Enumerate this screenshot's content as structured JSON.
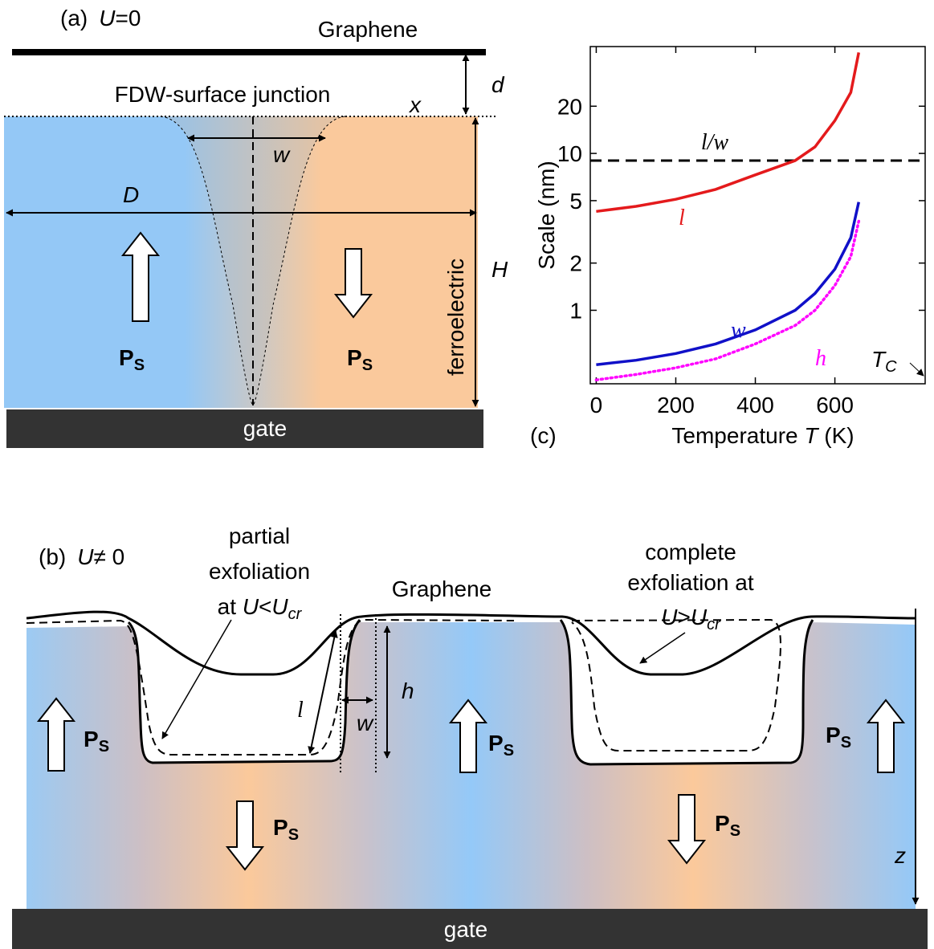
{
  "panel_a": {
    "label": "(a)",
    "condition": {
      "var": "U",
      "rest": "=0"
    },
    "graphene": "Graphene",
    "junction": "FDW-surface junction",
    "x_label": "x",
    "d_label": "d",
    "w_label": "w",
    "D_label": "D",
    "H_label": "H",
    "material": "ferroelectric",
    "polarization": [
      {
        "main": "P",
        "sub": "S"
      },
      {
        "main": "P",
        "sub": "S"
      }
    ],
    "gate": "gate"
  },
  "panel_b": {
    "label": "(b)",
    "condition": {
      "var": "U",
      "rest": "≠ 0"
    },
    "partial": {
      "lines": [
        "partial",
        "exfoliation"
      ],
      "at": "at ",
      "var": "U",
      "op": "<",
      "crit": "U",
      "crit_sub": "cr"
    },
    "graphene": "Graphene",
    "complete": {
      "lines": [
        "complete",
        "exfoliation at"
      ],
      "var": "U",
      "op": ">",
      "crit": "U",
      "crit_sub": "cr"
    },
    "l_label": "l",
    "w_label": "w",
    "h_label": "h",
    "z_label": "z",
    "polarization": [
      {
        "main": "P",
        "sub": "S"
      },
      {
        "main": "P",
        "sub": "S"
      },
      {
        "main": "P",
        "sub": "S"
      },
      {
        "main": "P",
        "sub": "S"
      },
      {
        "main": "P",
        "sub": "S"
      }
    ],
    "gate": "gate"
  },
  "chart_data": {
    "type": "line",
    "panel_label": "(c)",
    "y_label": "Scale (nm)",
    "x_label": {
      "pre": "Temperature ",
      "var": "T",
      "post": " (K)"
    },
    "log_y": true,
    "x": [
      0,
      100,
      200,
      300,
      400,
      500,
      550,
      600,
      640,
      660
    ],
    "series": [
      {
        "name": "l",
        "color": "#e41a1c",
        "style": "solid",
        "values": [
          4.27,
          4.6,
          5.1,
          5.9,
          7.3,
          9.0,
          11.0,
          16.2,
          24.5,
          44
        ]
      },
      {
        "name": "w",
        "color": "#1010c8",
        "style": "solid",
        "values": [
          0.45,
          0.48,
          0.53,
          0.61,
          0.75,
          1.0,
          1.28,
          1.83,
          2.9,
          4.9
        ]
      },
      {
        "name": "h",
        "color": "#ff00ff",
        "style": "dotted",
        "values": [
          0.36,
          0.39,
          0.43,
          0.49,
          0.61,
          0.8,
          1.0,
          1.44,
          2.2,
          3.7
        ]
      }
    ],
    "reference_line": {
      "name": "l/w",
      "value": 9
    },
    "annotation": {
      "main": "T",
      "sub": "C"
    },
    "xlim": [
      -15,
      827
    ],
    "ylim": [
      0.34,
      48
    ],
    "xticks": [
      0,
      200,
      400,
      600
    ],
    "yticks": [
      1,
      2,
      5,
      10,
      20
    ]
  }
}
